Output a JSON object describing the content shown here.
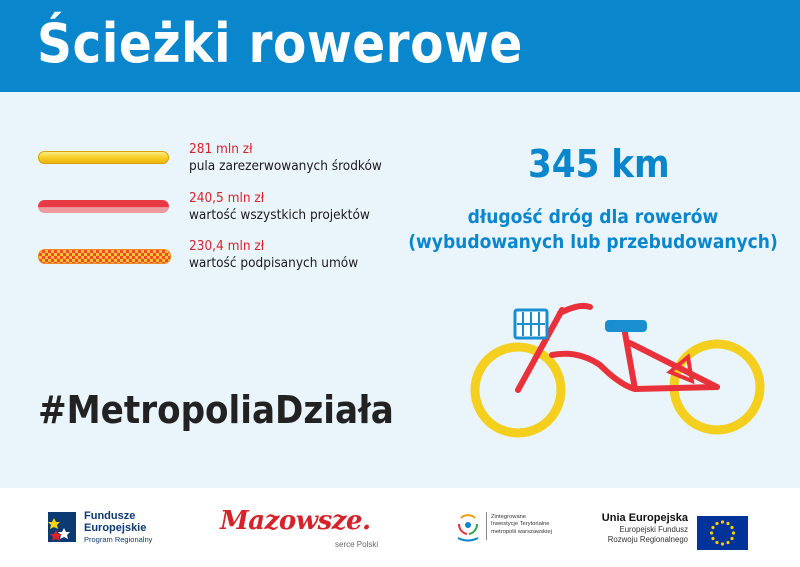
{
  "header": {
    "title": "Ścieżki rowerowe"
  },
  "legend": [
    {
      "value": "281 mln zł",
      "description": "pula zarezerwowanych środków"
    },
    {
      "value": "240,5 mln zł",
      "description": "wartość wszystkich projektów"
    },
    {
      "value": "230,4 mln zł",
      "description": "wartość podpisanych umów"
    }
  ],
  "stat": {
    "value": "345 km",
    "line1": "długość dróg dla rowerów",
    "line2": "(wybudowanych lub przebudowanych)"
  },
  "hashtag": "#MetropoliaDziała",
  "footer": {
    "fe_line1": "Fundusze",
    "fe_line2": "Europejskie",
    "fe_line3": "Program Regionalny",
    "mazowsze": "Mazowsze.",
    "mazowsze_sub": "serce Polski",
    "zit_line1": "Zintegrowane",
    "zit_line2": "Inwestycje Terytorialne",
    "zit_line3": "metropolii warszawskiej",
    "ue_line1": "Unia Europejska",
    "ue_line2": "Europejski Fundusz",
    "ue_line3": "Rozwoju Regionalnego"
  },
  "colors": {
    "accent_blue": "#0a86cc",
    "value_red": "#d6232a",
    "bike_red": "#e8313a",
    "wheel_yellow": "#f4cf1d"
  }
}
